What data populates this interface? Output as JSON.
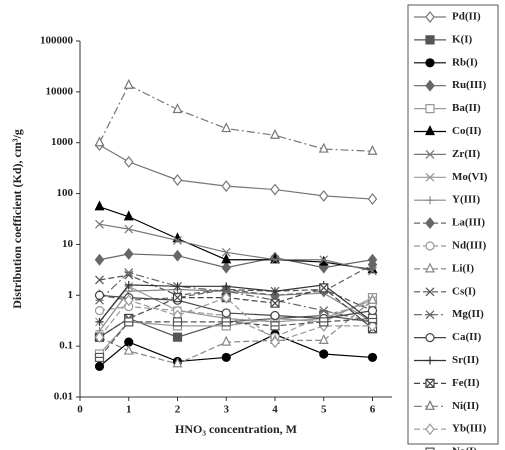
{
  "chart_data": {
    "type": "line",
    "log_scale": true,
    "xlabel": "HNO₃ concentration, M",
    "ylabel": "Distribution coefficient (Kd), cm³/g",
    "x": [
      0.4,
      1,
      2,
      3,
      4,
      5,
      6
    ],
    "xlim": [
      0,
      6.4
    ],
    "xticks": [
      0,
      1,
      2,
      3,
      4,
      5,
      6
    ],
    "ylim": [
      0.01,
      100000
    ],
    "yticks": [
      0.01,
      0.1,
      1,
      10,
      100,
      1000,
      10000,
      100000
    ],
    "grid": false,
    "legend": "right",
    "series": [
      {
        "name": "Pd(II)",
        "color": "#777777",
        "marker": "diamond-open",
        "line_style": "solid",
        "values": [
          900,
          420,
          185,
          140,
          120,
          90,
          78
        ]
      },
      {
        "name": "K(I)",
        "color": "#555555",
        "marker": "square-filled",
        "line_style": "solid",
        "values": [
          0.15,
          0.35,
          0.15,
          0.3,
          0.35,
          0.4,
          0.3
        ]
      },
      {
        "name": "Rb(I)",
        "color": "#000000",
        "marker": "circle-filled",
        "line_style": "solid",
        "values": [
          0.04,
          0.12,
          0.05,
          0.06,
          0.17,
          0.07,
          0.06
        ]
      },
      {
        "name": "Ru(III)",
        "color": "#666666",
        "marker": "diamond-filled",
        "line_style": "solid",
        "values": [
          5,
          6.5,
          6,
          3.5,
          5.5,
          3.5,
          5
        ]
      },
      {
        "name": "Ba(II)",
        "color": "#999999",
        "marker": "square-open",
        "line_style": "solid",
        "values": [
          0.07,
          0.3,
          0.25,
          0.25,
          0.35,
          0.3,
          0.9
        ]
      },
      {
        "name": "Co(II)",
        "color": "#000000",
        "marker": "triangle-filled",
        "line_style": "solid",
        "values": [
          55,
          35,
          13,
          5,
          5,
          4.5,
          3.2
        ]
      },
      {
        "name": "Zr(II)",
        "color": "#777777",
        "marker": "x",
        "line_style": "solid",
        "values": [
          25,
          20,
          12,
          7,
          5,
          5,
          3
        ]
      },
      {
        "name": "Mo(VI)",
        "color": "#999999",
        "marker": "asterisk",
        "line_style": "solid",
        "values": [
          0.3,
          1.5,
          0.5,
          0.35,
          0.3,
          0.35,
          0.8
        ]
      },
      {
        "name": "Y(III)",
        "color": "#888888",
        "marker": "plus",
        "line_style": "solid",
        "values": [
          0.2,
          1.2,
          1.3,
          1.2,
          1.0,
          1.1,
          0.3
        ]
      },
      {
        "name": "La(III)",
        "color": "#666666",
        "marker": "diamond-filled",
        "line_style": "dashed",
        "values": [
          1.0,
          0.8,
          0.9,
          1.3,
          1.0,
          1.2,
          4
        ]
      },
      {
        "name": "Nd(III)",
        "color": "#999999",
        "marker": "circle-open",
        "line_style": "dashed",
        "values": [
          0.5,
          0.6,
          0.5,
          0.4,
          0.15,
          0.4,
          0.7
        ]
      },
      {
        "name": "Li(I)",
        "color": "#888888",
        "marker": "triangle-open",
        "line_style": "dashed",
        "values": [
          0.15,
          0.08,
          0.045,
          0.12,
          0.13,
          0.13,
          0.8
        ]
      },
      {
        "name": "Cs(I)",
        "color": "#555555",
        "marker": "x",
        "line_style": "dashed",
        "values": [
          2,
          2.5,
          1.0,
          1.3,
          1.2,
          1.3,
          0.5
        ]
      },
      {
        "name": "Mg(II)",
        "color": "#666666",
        "marker": "asterisk",
        "line_style": "dash-dot",
        "values": [
          0.8,
          2.8,
          1.5,
          1.2,
          0.8,
          0.5,
          0.3
        ]
      },
      {
        "name": "Ca(II)",
        "color": "#444444",
        "marker": "circle-open",
        "line_style": "solid",
        "values": [
          1.0,
          0.9,
          0.8,
          0.45,
          0.4,
          0.35,
          0.5
        ]
      },
      {
        "name": "Sr(II)",
        "color": "#333333",
        "marker": "plus",
        "line_style": "solid",
        "values": [
          0.3,
          1.6,
          1.5,
          1.5,
          1.2,
          1.6,
          0.3
        ]
      },
      {
        "name": "Fe(II)",
        "color": "#444444",
        "marker": "square-x",
        "line_style": "dashed",
        "values": [
          0.15,
          0.35,
          0.9,
          0.9,
          0.7,
          1.4,
          0.22
        ]
      },
      {
        "name": "Ni(II)",
        "color": "#777777",
        "marker": "triangle-open",
        "line_style": "dash-dot",
        "values": [
          1000,
          13500,
          4500,
          1900,
          1400,
          750,
          680
        ]
      },
      {
        "name": "Yb(III)",
        "color": "#999999",
        "marker": "diamond-open",
        "line_style": "dashed",
        "values": [
          0.15,
          0.8,
          0.4,
          0.9,
          0.12,
          0.25,
          0.25
        ]
      },
      {
        "name": "Na(I)",
        "color": "#555555",
        "marker": "square-minus",
        "line_style": "dashed",
        "values": [
          0.06,
          0.3,
          0.3,
          0.3,
          0.25,
          0.3,
          0.35
        ]
      }
    ]
  }
}
